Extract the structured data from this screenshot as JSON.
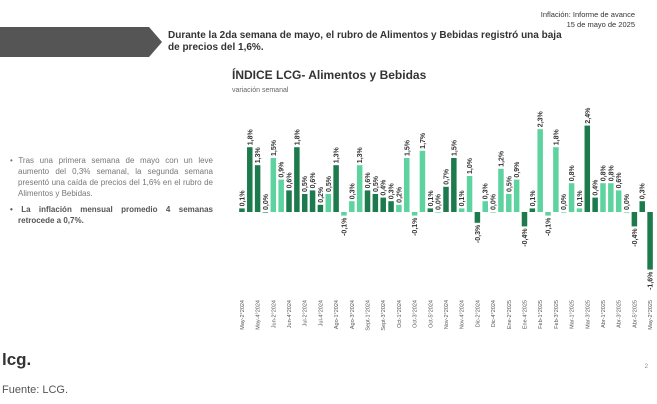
{
  "header": {
    "report": "Inflación: Informe de avance",
    "date": "15 de mayo de 2025",
    "banner": "Durante la 2da semana de mayo, el rubro de Alimentos y Bebidas registró una baja de precios del 1,6%."
  },
  "text": {
    "bullet1": "Tras una primera semana de mayo con un leve aumento del 0,3% semanal, la segunda semana presentó una caída de precios del 1,6% en el rubro de Alimentos y Bebidas.",
    "bullet2": "La inflación mensual promedio 4 semanas retrocede a 0,7%."
  },
  "footer": {
    "logo": "lcg.",
    "source": "Fuente: LCG.",
    "page": "2"
  },
  "chart_data": {
    "type": "bar",
    "title": "ÍNDICE LCG- Alimentos y Bebidas",
    "subtitle": "variación semanal",
    "categories": [
      "May-2°2024",
      null,
      "May-4°2024",
      null,
      "Jun-2°2024",
      null,
      "Jun-4°2024",
      null,
      "Jul-2°2024",
      null,
      "Jul-4°2024",
      null,
      "Ago-1°2024",
      null,
      "Ago-3°2024",
      null,
      "Sept-1°2024",
      null,
      "Sept-3°2024",
      null,
      "Oct-1°2024",
      null,
      "Oct-3°2024",
      null,
      "Oct-5°2024",
      null,
      "Nov-2°2024",
      null,
      "Nov-4°2024",
      null,
      "Dic-2°2024",
      null,
      "Dic-4°2024",
      null,
      "Ene-2°2025",
      null,
      "Ene-4°2025",
      null,
      "Feb-1°2025",
      null,
      "Feb-3°2025",
      null,
      "Mar-1°2025",
      null,
      "Mar-3°2025",
      null,
      "Abr-1°2025",
      null,
      "Abr-3°2025",
      null,
      "Abr-5°2025",
      null,
      "May-2°2025"
    ],
    "values": [
      0.1,
      1.8,
      1.3,
      0.0,
      1.5,
      0.9,
      0.6,
      1.8,
      0.5,
      0.6,
      0.2,
      0.5,
      1.3,
      -0.1,
      0.3,
      1.3,
      0.6,
      0.5,
      0.4,
      0.3,
      0.2,
      1.5,
      -0.1,
      1.7,
      0.1,
      0.0,
      0.7,
      1.5,
      0.1,
      1.0,
      -0.3,
      0.3,
      0.0,
      1.2,
      0.5,
      0.9,
      -0.4,
      0.1,
      2.3,
      -0.1,
      1.8,
      0.0,
      0.8,
      0.1,
      2.4,
      0.4,
      0.8,
      0.8,
      0.6,
      0.0,
      -0.4,
      0.3,
      -1.6
    ],
    "value_labels": [
      "0,1%",
      "1,8%",
      "1,3%",
      "0,0%",
      "1,5%",
      "0,9%",
      "0,6%",
      "1,8%",
      "0,5%",
      "0,6%",
      "0,2%",
      "0,5%",
      "1,3%",
      "-0,1%",
      "0,3%",
      "1,3%",
      "0,6%",
      "0,5%",
      "0,4%",
      "0,3%",
      "0,2%",
      "1,5%",
      "-0,1%",
      "1,7%",
      "0,1%",
      "0,0%",
      "0,7%",
      "1,5%",
      "0,1%",
      "1,0%",
      "-0,3%",
      "0,3%",
      "0,0%",
      "1,2%",
      "0,5%",
      "0,9%",
      "-0,4%",
      "0,1%",
      "2,3%",
      "-0,1%",
      "1,8%",
      "0,0%",
      "0,8%",
      "0,1%",
      "2,4%",
      "0,4%",
      "0,8%",
      "0,8%",
      "0,6%",
      "0,0%",
      "-0,4%",
      "0,3%",
      "-1,6%"
    ],
    "colors": [
      "#1d7a4c",
      "#1d7a4c",
      "#1d7a4c",
      "#1d7a4c",
      "#5ed39f",
      "#5ed39f",
      "#1d7a4c",
      "#1d7a4c",
      "#1d7a4c",
      "#1d7a4c",
      "#1d7a4c",
      "#5ed39f",
      "#1d7a4c",
      "#5ed39f",
      "#5ed39f",
      "#5ed39f",
      "#1d7a4c",
      "#1d7a4c",
      "#1d7a4c",
      "#1d7a4c",
      "#5ed39f",
      "#5ed39f",
      "#5ed39f",
      "#5ed39f",
      "#1d7a4c",
      "#5ed39f",
      "#1d7a4c",
      "#1d7a4c",
      "#5ed39f",
      "#5ed39f",
      "#1d7a4c",
      "#5ed39f",
      "#5ed39f",
      "#5ed39f",
      "#5ed39f",
      "#5ed39f",
      "#1d7a4c",
      "#1d7a4c",
      "#5ed39f",
      "#5ed39f",
      "#5ed39f",
      "#5ed39f",
      "#5ed39f",
      "#5ed39f",
      "#1d7a4c",
      "#1d7a4c",
      "#5ed39f",
      "#5ed39f",
      "#5ed39f",
      "#5ed39f",
      "#1d7a4c",
      "#1d7a4c",
      "#1d7a4c"
    ]
  }
}
